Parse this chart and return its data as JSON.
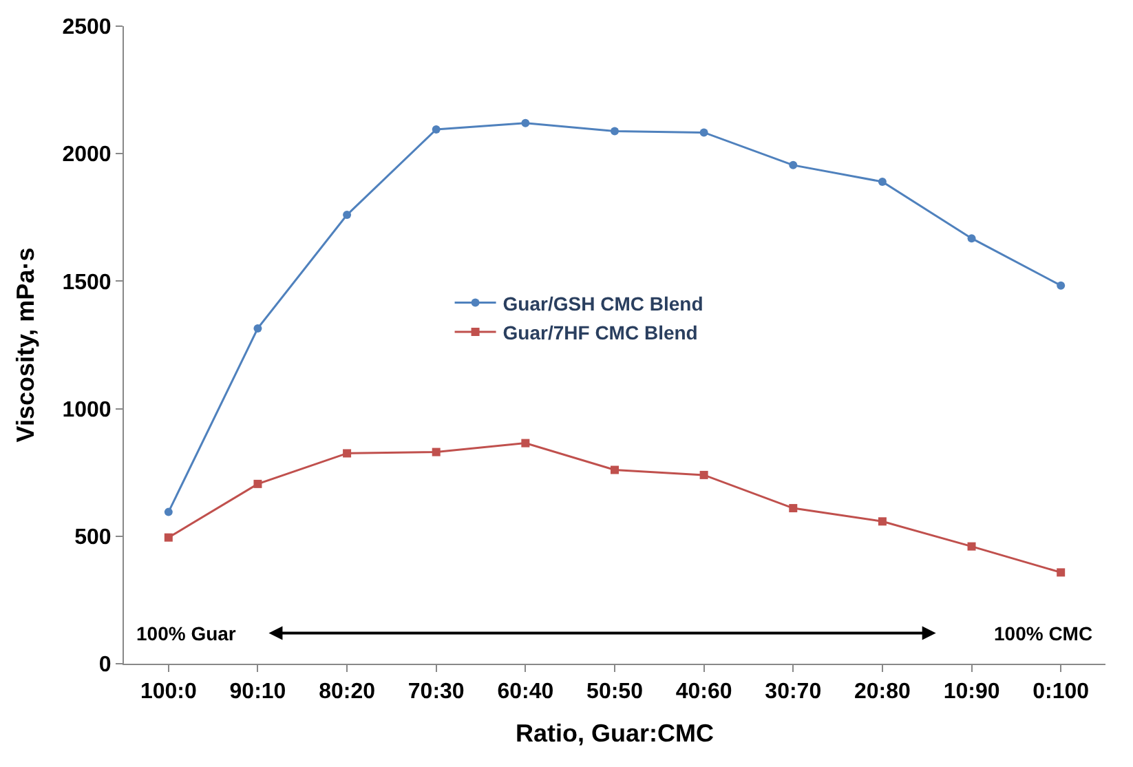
{
  "chart_data": {
    "type": "line",
    "xlabel": "Ratio, Guar:CMC",
    "ylabel": "Viscosity, mPa·s",
    "categories": [
      "100:0",
      "90:10",
      "80:20",
      "70:30",
      "60:40",
      "50:50",
      "40:60",
      "30:70",
      "20:80",
      "10:90",
      "0:100"
    ],
    "series": [
      {
        "name": "Guar/GSH CMC Blend",
        "color": "#4f81bd",
        "marker": "circle",
        "values": [
          595,
          1315,
          1760,
          2095,
          2120,
          2088,
          2083,
          1955,
          1890,
          1668,
          1483
        ]
      },
      {
        "name": "Guar/7HF CMC Blend",
        "color": "#c0504d",
        "marker": "square",
        "values": [
          495,
          705,
          825,
          830,
          865,
          760,
          740,
          610,
          558,
          460,
          358
        ]
      }
    ],
    "ylim": [
      0,
      2500
    ],
    "yticks": [
      0,
      500,
      1000,
      1500,
      2000,
      2500
    ],
    "legend": "center",
    "annotations": [
      "100% Guar",
      "100% CMC"
    ]
  }
}
